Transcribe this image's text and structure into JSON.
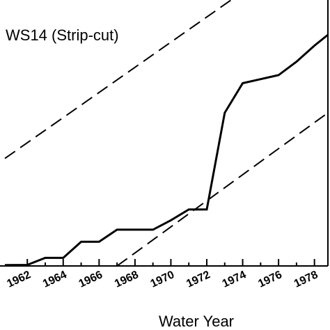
{
  "chart_data": {
    "type": "line",
    "title": "WS14 (Strip-cut)",
    "xlabel": "Water Year",
    "ylabel": "",
    "xlim": [
      1960.75,
      1978.75
    ],
    "ylim": [
      0,
      100
    ],
    "x_ticks": [
      1962,
      1964,
      1966,
      1968,
      1970,
      1972,
      1974,
      1976,
      1978
    ],
    "x_minor_ticks": [
      1963,
      1965,
      1967,
      1969,
      1971,
      1973,
      1975,
      1977
    ],
    "grid": false,
    "series": [
      {
        "style": "solid",
        "x": [
          1960.75,
          1962,
          1963,
          1964,
          1965,
          1966,
          1967,
          1968,
          1969,
          1970,
          1971,
          1972,
          1973,
          1974,
          1975,
          1976,
          1977,
          1978,
          1978.75
        ],
        "y": [
          0.3,
          0.4,
          3.0,
          3.0,
          9.0,
          9.0,
          13.5,
          13.5,
          13.5,
          17.0,
          21.0,
          21.0,
          57.0,
          68.0,
          69.5,
          71.0,
          76.0,
          82.0,
          86.0
        ]
      },
      {
        "style": "dashed",
        "x": [
          1960.75,
          1974.0
        ],
        "y": [
          40.0,
          102.0
        ]
      },
      {
        "style": "dashed",
        "x": [
          1967.0,
          1978.75
        ],
        "y": [
          0.0,
          57.0
        ]
      }
    ]
  }
}
